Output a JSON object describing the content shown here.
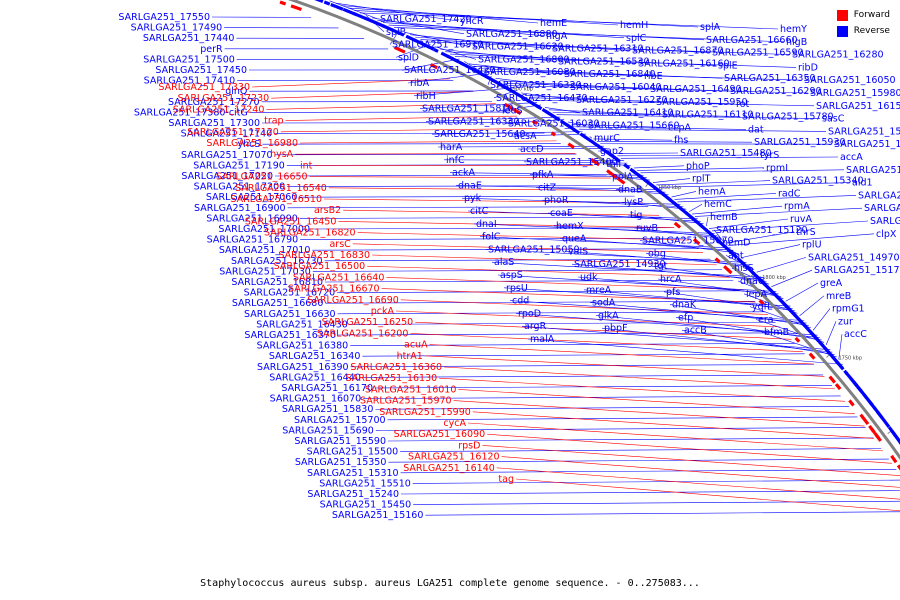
{
  "colors": {
    "forward": "#ff0000",
    "reverse": "#0000ff",
    "backbone": "#808080"
  },
  "legend": {
    "forward": "Forward",
    "reverse": "Reverse"
  },
  "caption": "Staphylococcus aureus subsp. aureus LGA251 complete genome sequence. - 0..275083...",
  "ticks": [
    "1900 kbp",
    "1850 kbp",
    "1800 kbp",
    "1750 kbp",
    "1700 kbp",
    "1650 kbp",
    "1600 kbp"
  ],
  "labels_forward": [
    "SARLGA251_17330",
    "SARLGA251_17230",
    "SARLGA251_17240",
    "trap",
    "SARLGA251_17120",
    "SARLGA251_16980",
    "hysA",
    "int",
    "SARLGA251_16650",
    "SARLGA251_16540",
    "SARLGA251_16510",
    "arsB2",
    "SARLGA251_16450",
    "SARLGA251_16820",
    "arsC",
    "SARLGA251_16830",
    "SARLGA251_16500",
    "SARLGA251_16640",
    "SARLGA251_16670",
    "SARLGA251_16690",
    "pckA",
    "SARLGA251_16250",
    "SARLGA251_16200",
    "acuA",
    "htrA1",
    "SARLGA251_16360",
    "SARLGA251_16130",
    "SARLGA251_16010",
    "SARLGA251_15970",
    "SARLGA251_15990",
    "cycA",
    "SARLGA251_16090",
    "rpsD",
    "SARLGA251_16120",
    "SARLGA251_16140",
    "tag"
  ],
  "labels_left_reverse": [
    "SARLGA251_17550",
    "SARLGA251_17490",
    "SARLGA251_17440",
    "perR",
    "SARLGA251_17500",
    "SARLGA251_17450",
    "SARLGA251_17410",
    "glnQ",
    "SARLGA251_17270",
    "SARLGA251_17380-citG",
    "SARLGA251_17300",
    "SARLGA251_17140",
    "yhcS",
    "SARLGA251_17070",
    "SARLGA251_17190",
    "SARLGA251_17020",
    "SARLGA251_17200",
    "SARLGA251_17060",
    "SARLGA251_16900",
    "SARLGA251_16990",
    "SARLGA251_17000",
    "SARLGA251_16790",
    "SARLGA251_17010",
    "SARLGA251_16730",
    "SARLGA251_17030",
    "SARLGA251_16810",
    "SARLGA251_16720",
    "SARLGA251_16680",
    "SARLGA251_16630",
    "SARLGA251_16430",
    "SARLGA251_16370",
    "SARLGA251_16380",
    "SARLGA251_16340",
    "SARLGA251_16390",
    "SARLGA251_16440",
    "SARLGA251_16170",
    "SARLGA251_16070",
    "SARLGA251_15830",
    "SARLGA251_15700",
    "SARLGA251_15690",
    "SARLGA251_15590",
    "SARLGA251_15500",
    "SARLGA251_15350",
    "SARLGA251_15310",
    "SARLGA251_15510",
    "SARLGA251_15240",
    "SARLGA251_15450",
    "SARLGA251_15160"
  ],
  "labels_right_reverse": [
    "SARLGA251_17420",
    "yhcR",
    "hemE",
    "hemH",
    "splA",
    "hemY",
    "splB",
    "SARLGA251_16880",
    "hlgA",
    "splC",
    "SARLGA251_16660",
    "hlgB",
    "SARLGA251_16910",
    "SARLGA251_16620",
    "SARLGA251_16310",
    "SARLGA251_16870",
    "SARLGA251_16590",
    "SARLGA251_16280",
    "splD",
    "SARLGA251_16800",
    "SARLGA251_16530",
    "SARLGA251_16160",
    "splE",
    "ribD",
    "SARLGA251_16420",
    "SARLGA251_16080",
    "SARLGA251_16840",
    "ribE",
    "SARLGA251_16350",
    "SARLGA251_16050",
    "ribA",
    "SARLGA251_16320",
    "SARLGA251_16040",
    "SARLGA251_16490",
    "SARLGA251_16290",
    "SARLGA251_15980",
    "ribH",
    "SARLGA251_16470",
    "SARLGA251_16270",
    "SARLGA251_15950",
    "rot",
    "SARLGA251_16150",
    "SARLGA251_15810",
    "leuS",
    "SARLGA251_16410",
    "SARLGA251_16110",
    "SARLGA251_15780",
    "sasC",
    "SARLGA251_16330",
    "SARLGA251_16030",
    "SARLGA251_15660",
    "ccpA",
    "dat",
    "SARLGA251_15960",
    "SARLGA251_15640",
    "acsA",
    "murC",
    "fhs",
    "SARLGA251_15930",
    "SARLGA251_15550",
    "harA",
    "accD",
    "gap2",
    "SARLGA251_15480",
    "tyrS",
    "accA",
    "infC",
    "SARLGA251_15400",
    "thiI",
    "phoP",
    "rpmI",
    "SARLGA251_15380",
    "ackA",
    "pfkA",
    "polA",
    "rplT",
    "SARLGA251_15340",
    "ald1",
    "dnaE",
    "citZ",
    "dnaB",
    "hemA",
    "radC",
    "SARLGA251_15270",
    "pyk",
    "phoR",
    "lysP",
    "hemC",
    "rpmA",
    "SARLGA251_15220",
    "citC",
    "coaE",
    "tig",
    "hemB",
    "ruvA",
    "SARLGA251_15180",
    "dnaI",
    "hemX",
    "ruvB",
    "SARLGA251_15120",
    "thrS",
    "clpX",
    "folC",
    "queA",
    "SARLGA251_15070",
    "hemD",
    "rplU",
    "secF",
    "SARLGA251_15050",
    "valS",
    "obg",
    "apt",
    "SARLGA251_14970",
    "relA",
    "alaS",
    "SARLGA251_14930",
    "tgt",
    "hisS",
    "SARLGA251_15170",
    "ccpN",
    "aspS",
    "udk",
    "hrcA",
    "dnaG",
    "greA",
    "grpE",
    "rpsU",
    "mreA",
    "pfs",
    "lepA",
    "mreB",
    "aroE",
    "cdd",
    "sodA",
    "dnaK",
    "yqfL",
    "rpmG1",
    "dnaJ",
    "rpoD",
    "glkA",
    "efp",
    "era",
    "zur",
    "gcvT",
    "argR",
    "pbpF",
    "accB",
    "bfmB",
    "accC",
    "gnd",
    "malA"
  ]
}
